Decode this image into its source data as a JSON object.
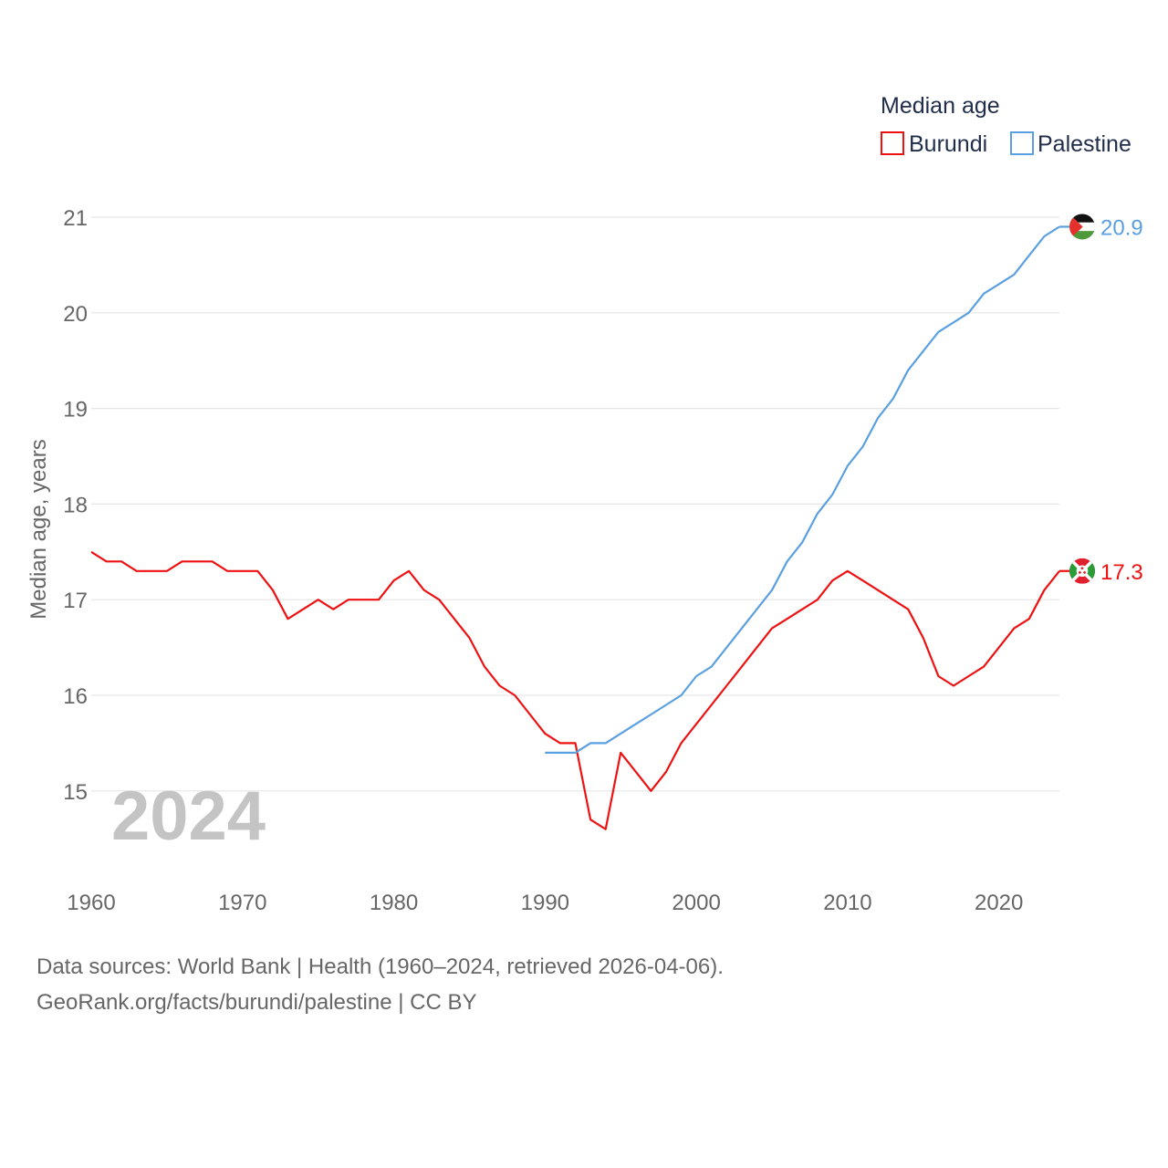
{
  "chart_data": {
    "type": "line",
    "legend_title": "Median age",
    "ylabel": "Median age, years",
    "ylim": [
      14.1,
      21.5
    ],
    "xlim": [
      1960,
      2024
    ],
    "y_ticks": [
      15,
      16,
      17,
      18,
      19,
      20,
      21
    ],
    "x_ticks": [
      1960,
      1970,
      1980,
      1990,
      2000,
      2010,
      2020
    ],
    "year_label": "2024",
    "series": [
      {
        "name": "Burundi",
        "color": "#ee1111",
        "end_label": "17.3",
        "flag": "burundi",
        "x": [
          1960,
          1961,
          1962,
          1963,
          1964,
          1965,
          1966,
          1967,
          1968,
          1969,
          1970,
          1971,
          1972,
          1973,
          1974,
          1975,
          1976,
          1977,
          1978,
          1979,
          1980,
          1981,
          1982,
          1983,
          1984,
          1985,
          1986,
          1987,
          1988,
          1989,
          1990,
          1991,
          1992,
          1993,
          1994,
          1995,
          1996,
          1997,
          1998,
          1999,
          2000,
          2001,
          2002,
          2003,
          2004,
          2005,
          2006,
          2007,
          2008,
          2009,
          2010,
          2011,
          2012,
          2013,
          2014,
          2015,
          2016,
          2017,
          2018,
          2019,
          2020,
          2021,
          2022,
          2023,
          2024
        ],
        "values": [
          17.5,
          17.4,
          17.4,
          17.3,
          17.3,
          17.3,
          17.4,
          17.4,
          17.4,
          17.3,
          17.3,
          17.3,
          17.1,
          16.8,
          16.9,
          17.0,
          16.9,
          17.0,
          17.0,
          17.0,
          17.2,
          17.3,
          17.1,
          17.0,
          16.8,
          16.6,
          16.3,
          16.1,
          16.0,
          15.8,
          15.6,
          15.5,
          15.5,
          14.7,
          14.6,
          15.4,
          15.2,
          15.0,
          15.2,
          15.5,
          15.7,
          15.9,
          16.1,
          16.3,
          16.5,
          16.7,
          16.8,
          16.9,
          17.0,
          17.2,
          17.3,
          17.2,
          17.1,
          17.0,
          16.9,
          16.6,
          16.2,
          16.1,
          16.2,
          16.3,
          16.5,
          16.7,
          16.8,
          17.1,
          17.3
        ]
      },
      {
        "name": "Palestine",
        "color": "#5aa0e0",
        "end_label": "20.9",
        "flag": "palestine",
        "x": [
          1990,
          1991,
          1992,
          1993,
          1994,
          1995,
          1996,
          1997,
          1998,
          1999,
          2000,
          2001,
          2002,
          2003,
          2004,
          2005,
          2006,
          2007,
          2008,
          2009,
          2010,
          2011,
          2012,
          2013,
          2014,
          2015,
          2016,
          2017,
          2018,
          2019,
          2020,
          2021,
          2022,
          2023,
          2024
        ],
        "values": [
          15.4,
          15.4,
          15.4,
          15.5,
          15.5,
          15.6,
          15.7,
          15.8,
          15.9,
          16.0,
          16.2,
          16.3,
          16.5,
          16.7,
          16.9,
          17.1,
          17.4,
          17.6,
          17.9,
          18.1,
          18.4,
          18.6,
          18.9,
          19.1,
          19.4,
          19.6,
          19.8,
          19.9,
          20.0,
          20.2,
          20.3,
          20.4,
          20.6,
          20.8,
          20.9
        ]
      }
    ]
  },
  "footer": {
    "sources": "Data sources: World Bank | Health (1960–2024, retrieved 2026-04-06).",
    "credit": "GeoRank.org/facts/burundi/palestine | CC BY"
  }
}
